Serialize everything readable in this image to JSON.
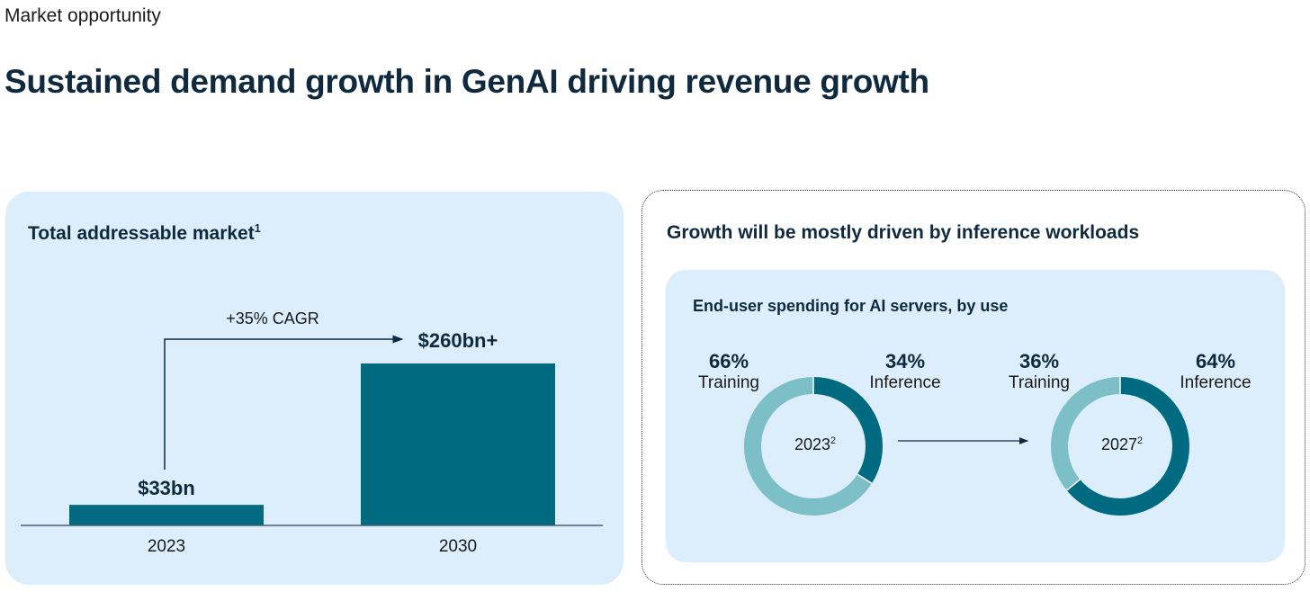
{
  "header": {
    "kicker": "Market opportunity",
    "title": "Sustained demand growth in GenAI driving revenue growth"
  },
  "colors": {
    "dark_teal": "#006a80",
    "light_teal": "#7dbfc6",
    "panel_bg": "#dcedfc",
    "navy": "#0f2a3f"
  },
  "chart_data": [
    {
      "type": "bar",
      "title": "Total addressable market",
      "title_footnote": "1",
      "categories": [
        "2023",
        "2030"
      ],
      "values": [
        33,
        260
      ],
      "data_labels": [
        "$33bn",
        "$260bn+"
      ],
      "unit": "$bn",
      "annotation": "+35% CAGR",
      "xlabel": "",
      "ylabel": "",
      "ylim": [
        0,
        260
      ],
      "grid": false
    },
    {
      "type": "pie",
      "panel_title": "Growth will be mostly driven by inference workloads",
      "title": "End-user spending for AI servers, by use",
      "donuts": [
        {
          "center_label": "2023",
          "footnote": "2",
          "slices": [
            {
              "name": "Training",
              "value": 66,
              "label": "66%"
            },
            {
              "name": "Inference",
              "value": 34,
              "label": "34%"
            }
          ]
        },
        {
          "center_label": "2027",
          "footnote": "2",
          "slices": [
            {
              "name": "Training",
              "value": 36,
              "label": "36%"
            },
            {
              "name": "Inference",
              "value": 64,
              "label": "64%"
            }
          ]
        }
      ]
    }
  ]
}
